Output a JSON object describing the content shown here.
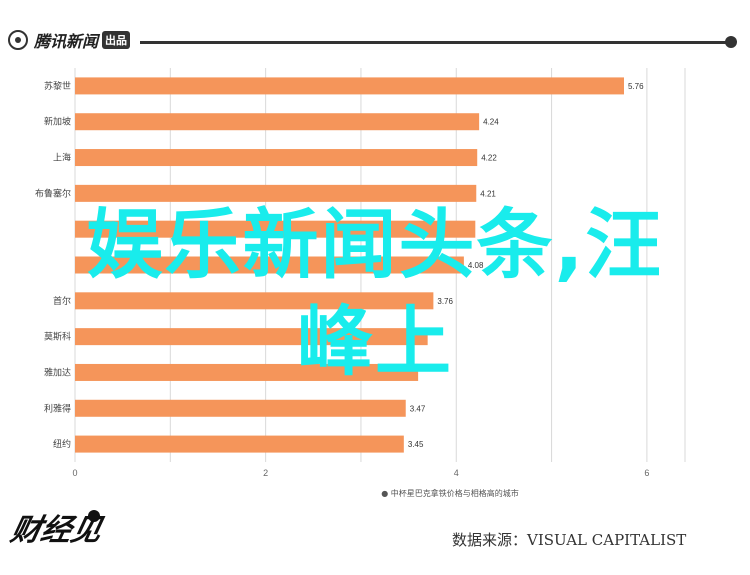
{
  "header": {
    "logo_text": "腾讯新闻",
    "logo_badge": "出品"
  },
  "overlay": {
    "line1": "娱乐新闻头条,汪",
    "line2": "峰上"
  },
  "brand": {
    "name": "财经见"
  },
  "source": {
    "text": "数据来源：VISUAL CAPITALIST"
  },
  "colors": {
    "bar": "#f5955a",
    "overlay_text": "#19ecec",
    "grid": "#d9d9d9"
  },
  "chart_data": {
    "type": "bar",
    "orientation": "horizontal",
    "categories": [
      "苏黎世",
      "新加坡",
      "上海",
      "布鲁塞尔",
      "",
      "",
      "首尔",
      "莫斯科",
      "雅加达",
      "利雅得",
      "纽约"
    ],
    "values": [
      5.76,
      4.24,
      4.22,
      4.21,
      4.2,
      4.08,
      3.76,
      3.7,
      3.6,
      3.47,
      3.45
    ],
    "value_labels": [
      "5.76",
      "4.24",
      "4.22",
      "4.21",
      "",
      "4.08",
      "3.76",
      "",
      "",
      "3.47",
      "3.45"
    ],
    "xlim": [
      0,
      6.4
    ],
    "xticks": [
      0,
      2,
      4,
      6
    ],
    "xtick_labels": [
      "0",
      "2",
      "4",
      "6"
    ],
    "xlabel": "● 中杯星巴克拿铁价格与相格高的城市",
    "grid": true
  }
}
